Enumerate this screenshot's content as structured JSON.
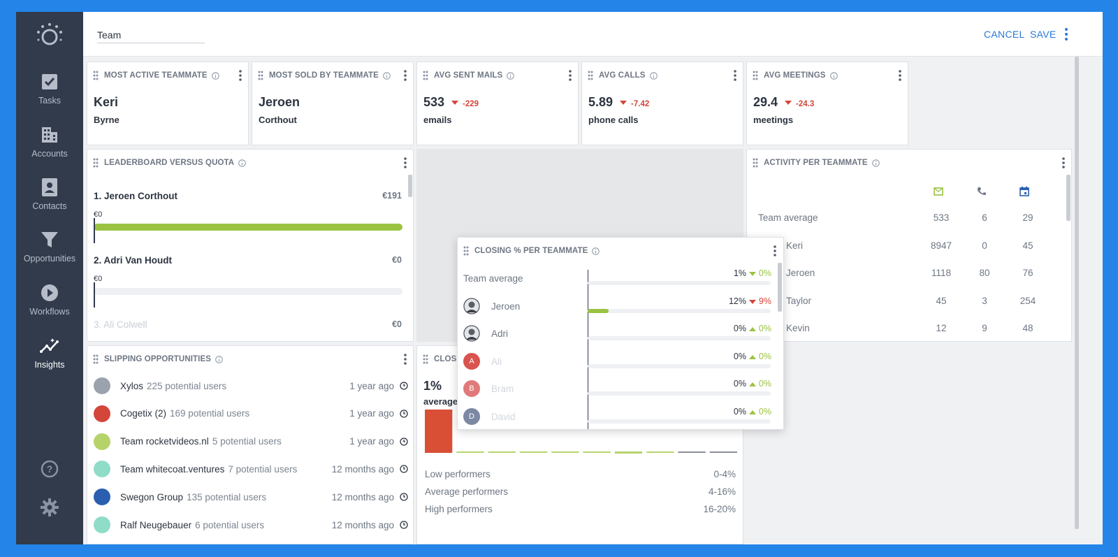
{
  "sidebar": {
    "items": [
      {
        "label": "Tasks",
        "icon": "tasks-icon"
      },
      {
        "label": "Accounts",
        "icon": "accounts-icon"
      },
      {
        "label": "Contacts",
        "icon": "contacts-icon"
      },
      {
        "label": "Opportunities",
        "icon": "funnel-icon"
      },
      {
        "label": "Workflows",
        "icon": "play-icon"
      },
      {
        "label": "Insights",
        "icon": "insights-icon",
        "active": true
      }
    ],
    "help_icon": "help-icon",
    "settings_icon": "gear-icon"
  },
  "header": {
    "title_value": "Team",
    "cancel_label": "CANCEL",
    "save_label": "SAVE"
  },
  "kpis": [
    {
      "title": "MOST ACTIVE TEAMMATE",
      "main": "Keri",
      "sub": "Byrne"
    },
    {
      "title": "MOST SOLD BY TEAMMATE",
      "main": "Jeroen",
      "sub": "Corthout"
    },
    {
      "title": "AVG SENT MAILS",
      "main": "533",
      "delta": "-229",
      "sub": "emails"
    },
    {
      "title": "AVG CALLS",
      "main": "5.89",
      "delta": "-7.42",
      "sub": "phone calls"
    },
    {
      "title": "AVG MEETINGS",
      "main": "29.4",
      "delta": "-24.3",
      "sub": "meetings"
    }
  ],
  "leaderboard": {
    "title": "LEADERBOARD VERSUS QUOTA",
    "entries": [
      {
        "name": "1. Jeroen Corthout",
        "value": "€191",
        "start": "€0",
        "progress": 1.0
      },
      {
        "name": "2. Adri Van Houdt",
        "value": "€0",
        "start": "€0",
        "progress": 0
      },
      {
        "name": "3. Ali Colwell",
        "value": "€0"
      }
    ]
  },
  "activity": {
    "title": "ACTIVITY PER TEAMMATE",
    "column_icons": [
      "mail-icon",
      "phone-icon",
      "calendar-icon"
    ],
    "rows": [
      {
        "name": "Team average",
        "mails": "533",
        "calls": "6",
        "meetings": "29"
      },
      {
        "name": "Keri",
        "mails": "8947",
        "calls": "0",
        "meetings": "45"
      },
      {
        "name": "Jeroen",
        "mails": "1118",
        "calls": "80",
        "meetings": "76"
      },
      {
        "name": "Taylor",
        "mails": "45",
        "calls": "3",
        "meetings": "254"
      },
      {
        "name": "Kevin",
        "mails": "12",
        "calls": "9",
        "meetings": "48"
      }
    ]
  },
  "slipping": {
    "title": "SLIPPING OPPORTUNITIES",
    "rows": [
      {
        "name": "Xylos",
        "users": "225 potential users",
        "time": "1 year ago",
        "color": "#9aa3ad"
      },
      {
        "name": "Cogetix (2)",
        "users": "169 potential users",
        "time": "1 year ago",
        "color": "#d4453a"
      },
      {
        "name": "Team rocketvideos.nl",
        "users": "5 potential users",
        "time": "1 year ago",
        "color": "#b6d36a"
      },
      {
        "name": "Team whitecoat.ventures",
        "users": "7 potential users",
        "time": "12 months ago",
        "color": "#8fdcc8"
      },
      {
        "name": "Swegon Group",
        "users": "135 potential users",
        "time": "12 months ago",
        "color": "#2a5fb0"
      },
      {
        "name": "Ralf Neugebauer",
        "users": "6 potential users",
        "time": "12 months ago",
        "color": "#8fdcc8"
      }
    ]
  },
  "closing_behind": {
    "title": "CLOSI",
    "value": "1%",
    "label": "average",
    "chart_data": {
      "type": "bar",
      "values": [
        1,
        0,
        0,
        0,
        0,
        0,
        0,
        0,
        0,
        0
      ]
    },
    "performers": [
      {
        "label": "Low performers",
        "range": "0-4%"
      },
      {
        "label": "Average performers",
        "range": "4-16%"
      },
      {
        "label": "High performers",
        "range": "16-20%"
      }
    ]
  },
  "closing_overlay": {
    "title": "CLOSING % PER TEAMMATE",
    "rows": [
      {
        "name": "Team average",
        "pct": "1%",
        "delta": "0%",
        "dir": "down-green",
        "fill": 0.01
      },
      {
        "name": "Jeroen",
        "pct": "12%",
        "delta": "9%",
        "dir": "down-red",
        "fill": 0.12,
        "avatar": "photo"
      },
      {
        "name": "Adri",
        "pct": "0%",
        "delta": "0%",
        "dir": "up-green",
        "fill": 0,
        "avatar": "photo"
      },
      {
        "name": "Ali",
        "pct": "0%",
        "delta": "0%",
        "dir": "up-green",
        "fill": 0,
        "avatar": "A",
        "color": "#d9534f"
      },
      {
        "name": "Bram",
        "pct": "0%",
        "delta": "0%",
        "dir": "up-green",
        "fill": 0,
        "avatar": "B",
        "color": "#e07a7a"
      },
      {
        "name": "David",
        "pct": "0%",
        "delta": "0%",
        "dir": "up-green",
        "fill": 0,
        "avatar": "D",
        "color": "#7d88a3"
      }
    ]
  },
  "colors": {
    "accent": "#2a78d6",
    "sidebar": "#313b4c",
    "green": "#9ac342",
    "red": "#d4453a"
  }
}
